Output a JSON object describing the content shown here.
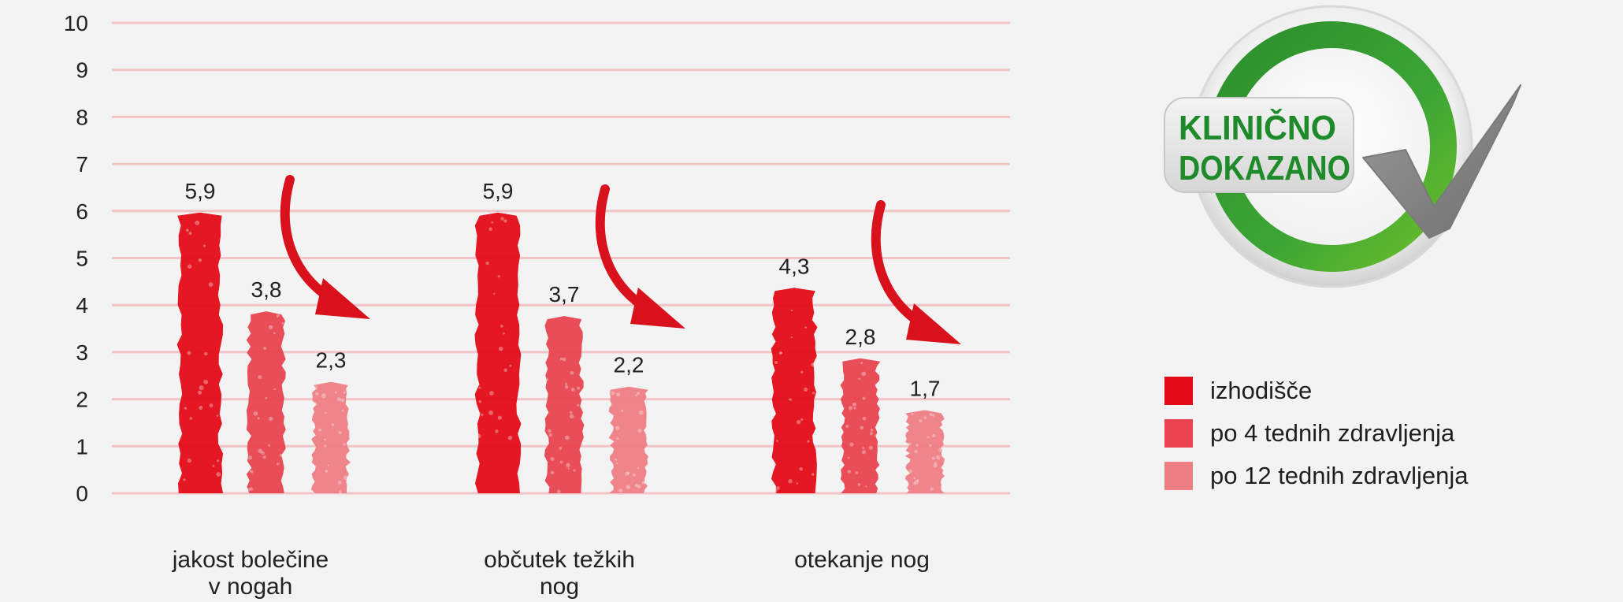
{
  "chart_data": {
    "type": "bar",
    "categories": [
      [
        "jakost bolečine",
        "v nogah"
      ],
      [
        "občutek težkih",
        "nog"
      ],
      [
        "otekanje nog"
      ]
    ],
    "series": [
      {
        "name": "izhodišče",
        "values": [
          5.9,
          5.9,
          4.3
        ],
        "labels": [
          "5,9",
          "5,9",
          "4,3"
        ],
        "color": "#e30b17"
      },
      {
        "name": "po 4 tednih zdravljenja",
        "values": [
          3.8,
          3.7,
          2.8
        ],
        "labels": [
          "3,8",
          "3,7",
          "2,8"
        ],
        "color": "#e8434e"
      },
      {
        "name": "po 12 tednih zdravljenja",
        "values": [
          2.3,
          2.2,
          1.7
        ],
        "labels": [
          "2,3",
          "2,2",
          "1,7"
        ],
        "color": "#ef7d85"
      }
    ],
    "ylim": [
      0,
      10
    ],
    "yticks": [
      "0",
      "1",
      "2",
      "3",
      "4",
      "5",
      "6",
      "7",
      "8",
      "9",
      "10"
    ],
    "grid": true,
    "gridline_color": "#f2c4c7",
    "arrow_color": "#d8111c",
    "legend_position": "right"
  },
  "badge": {
    "line1": "KLINIČNO",
    "line2": "DOKAZANO",
    "ring_color": "#2f9a2f",
    "text_color": "#1f8a2a",
    "check_color": "#8a8a8a"
  }
}
